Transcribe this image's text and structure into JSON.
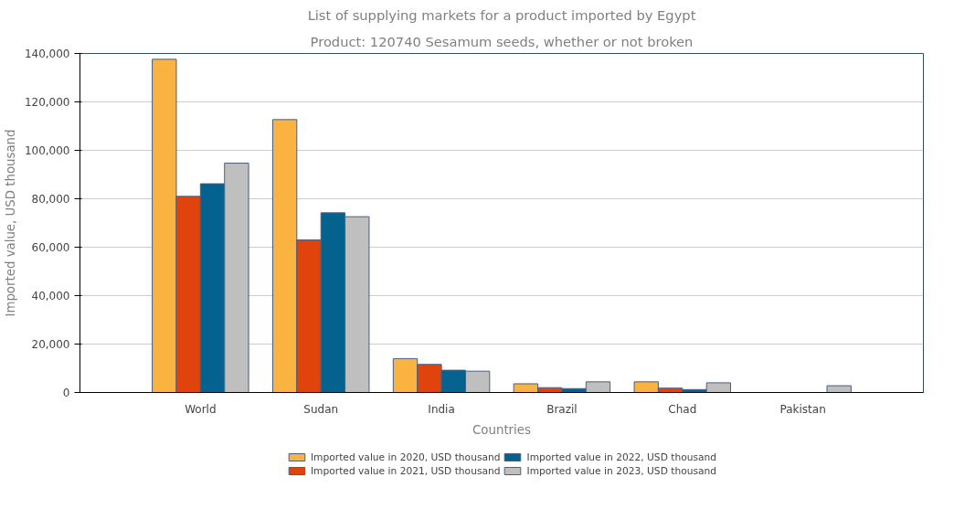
{
  "chart_data": {
    "type": "bar",
    "title": "List of supplying markets for a product imported by Egypt",
    "subtitle": "Product: 120740 Sesamum seeds, whether or not broken",
    "xlabel": "Countries",
    "ylabel": "Imported value, USD thousand",
    "categories": [
      "World",
      "Sudan",
      "India",
      "Brazil",
      "Chad",
      "Pakistan"
    ],
    "series": [
      {
        "name": "Imported value in 2020, USD thousand",
        "color": "#fab340",
        "values": [
          137600,
          112700,
          14000,
          3600,
          4400,
          null
        ]
      },
      {
        "name": "Imported value in 2021, USD thousand",
        "color": "#e0440c",
        "values": [
          81000,
          63000,
          11600,
          2000,
          1800,
          null
        ]
      },
      {
        "name": "Imported value in 2022, USD thousand",
        "color": "#05628f",
        "values": [
          86200,
          74200,
          9200,
          1600,
          1200,
          null
        ]
      },
      {
        "name": "Imported value in 2023, USD thousand",
        "color": "#bfbfbf",
        "values": [
          94700,
          72600,
          8800,
          4400,
          4000,
          2800
        ]
      }
    ],
    "ylim": [
      0,
      140000
    ],
    "yticks": [
      {
        "value": 0,
        "label": "0"
      },
      {
        "value": 20000,
        "label": "20,000"
      },
      {
        "value": 40000,
        "label": "40,000"
      },
      {
        "value": 60000,
        "label": "60,000"
      },
      {
        "value": 80000,
        "label": "80,000"
      },
      {
        "value": 100000,
        "label": "100,000"
      },
      {
        "value": 120000,
        "label": "120,000"
      },
      {
        "value": 140000,
        "label": "140,000"
      }
    ],
    "grid": "y",
    "legend": "bottom"
  }
}
